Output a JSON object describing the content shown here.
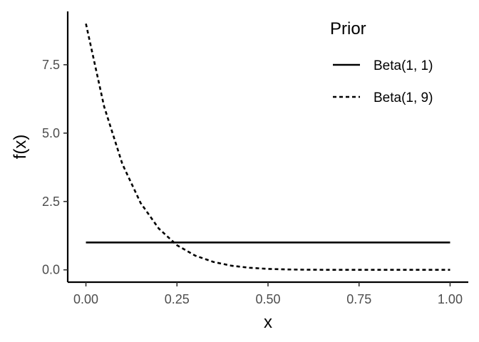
{
  "chart_data": {
    "type": "line",
    "title": "",
    "xlabel": "x",
    "ylabel": "f(x)",
    "xlim": [
      -0.05,
      1.05
    ],
    "ylim": [
      -0.45,
      9.45
    ],
    "x_ticks": [
      0.0,
      0.25,
      0.5,
      0.75,
      1.0
    ],
    "x_tick_labels": [
      "0.00",
      "0.25",
      "0.50",
      "0.75",
      "1.00"
    ],
    "y_ticks": [
      0.0,
      2.5,
      5.0,
      7.5
    ],
    "y_tick_labels": [
      "0.0",
      "2.5",
      "5.0",
      "7.5"
    ],
    "grid": false,
    "legend": {
      "title": "Prior",
      "position": "top-right"
    },
    "series": [
      {
        "name": "Beta(1, 1)",
        "line_style": "solid",
        "color": "#000000",
        "x": [
          0.0,
          0.25,
          0.5,
          0.75,
          1.0
        ],
        "y": [
          1.0,
          1.0,
          1.0,
          1.0,
          1.0
        ]
      },
      {
        "name": "Beta(1, 9)",
        "line_style": "dashed",
        "color": "#000000",
        "x": [
          0.0,
          0.05,
          0.1,
          0.15,
          0.2,
          0.25,
          0.3,
          0.35,
          0.4,
          0.45,
          0.5,
          0.55,
          0.6,
          0.65,
          0.7,
          0.75,
          0.8,
          0.85,
          0.9,
          0.95,
          1.0
        ],
        "y": [
          9.0,
          5.97,
          3.87,
          2.45,
          1.51,
          0.9,
          0.52,
          0.29,
          0.15,
          0.075,
          0.035,
          0.015,
          0.006,
          0.002,
          0.0006,
          0.0001,
          0.0,
          0.0,
          0.0,
          0.0,
          0.0
        ]
      }
    ]
  }
}
